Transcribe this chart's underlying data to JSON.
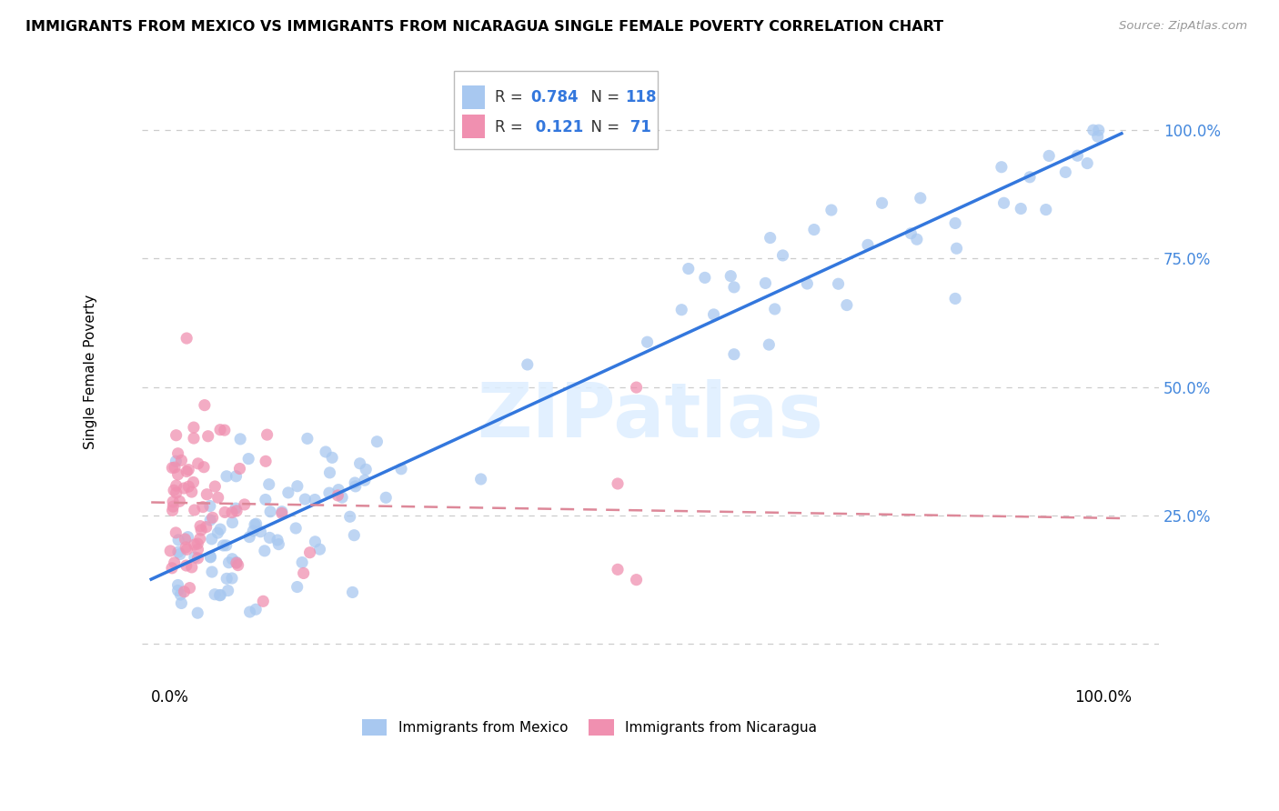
{
  "title": "IMMIGRANTS FROM MEXICO VS IMMIGRANTS FROM NICARAGUA SINGLE FEMALE POVERTY CORRELATION CHART",
  "source": "Source: ZipAtlas.com",
  "ylabel": "Single Female Poverty",
  "R_mexico": 0.784,
  "N_mexico": 118,
  "R_nicaragua": 0.121,
  "N_nicaragua": 71,
  "color_mexico": "#a8c8f0",
  "color_nicaragua": "#f090b0",
  "color_mexico_line": "#3377dd",
  "color_nicaragua_line": "#dd8899",
  "watermark": "ZIPatlas",
  "legend_entry1": "R = 0.784   N = 118",
  "legend_entry2": "R =  0.121   N =  71",
  "bottom_label1": "Immigrants from Mexico",
  "bottom_label2": "Immigrants from Nicaragua"
}
